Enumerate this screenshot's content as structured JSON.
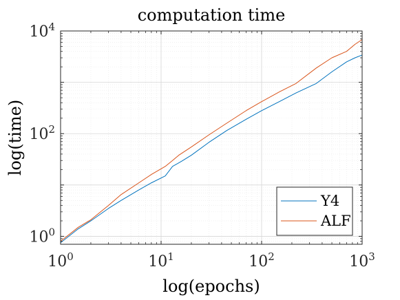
{
  "chart_data": {
    "type": "line",
    "title": "computation time",
    "xlabel": "log(epochs)",
    "ylabel": "log(time)",
    "xscale": "log",
    "yscale": "log",
    "xlim": [
      1,
      1000
    ],
    "ylim": [
      0.7,
      10000
    ],
    "grid": true,
    "legend_position": "bottom-right",
    "x_ticks": [
      {
        "value": 1,
        "base": "10",
        "exp": "0"
      },
      {
        "value": 10,
        "base": "10",
        "exp": "1"
      },
      {
        "value": 100,
        "base": "10",
        "exp": "2"
      },
      {
        "value": 1000,
        "base": "10",
        "exp": "3"
      }
    ],
    "y_ticks": [
      {
        "value": 1,
        "base": "10",
        "exp": "0"
      },
      {
        "value": 100,
        "base": "10",
        "exp": "2"
      },
      {
        "value": 10000,
        "base": "10",
        "exp": "4"
      }
    ],
    "series": [
      {
        "name": "Y4",
        "color": "#0072BD",
        "x": [
          1,
          1.5,
          2,
          3,
          4,
          6,
          8,
          11,
          13,
          16,
          20,
          30,
          45,
          70,
          100,
          150,
          220,
          350,
          500,
          700,
          850,
          1000
        ],
        "y": [
          0.75,
          1.4,
          2.0,
          3.5,
          5.0,
          8.0,
          11.0,
          15.0,
          23,
          29,
          38,
          68,
          115,
          190,
          280,
          420,
          620,
          950,
          1600,
          2500,
          3000,
          3400
        ]
      },
      {
        "name": "ALF",
        "color": "#D95319",
        "x": [
          1,
          1.5,
          2,
          3,
          4,
          6,
          8,
          11,
          13,
          15,
          20,
          30,
          45,
          70,
          100,
          150,
          220,
          350,
          500,
          700,
          850,
          1000
        ],
        "y": [
          0.8,
          1.5,
          2.1,
          4.0,
          6.5,
          11.0,
          16.0,
          23.0,
          30,
          38,
          55,
          95,
          160,
          280,
          420,
          650,
          950,
          1900,
          3000,
          4000,
          5500,
          6800
        ]
      }
    ]
  }
}
